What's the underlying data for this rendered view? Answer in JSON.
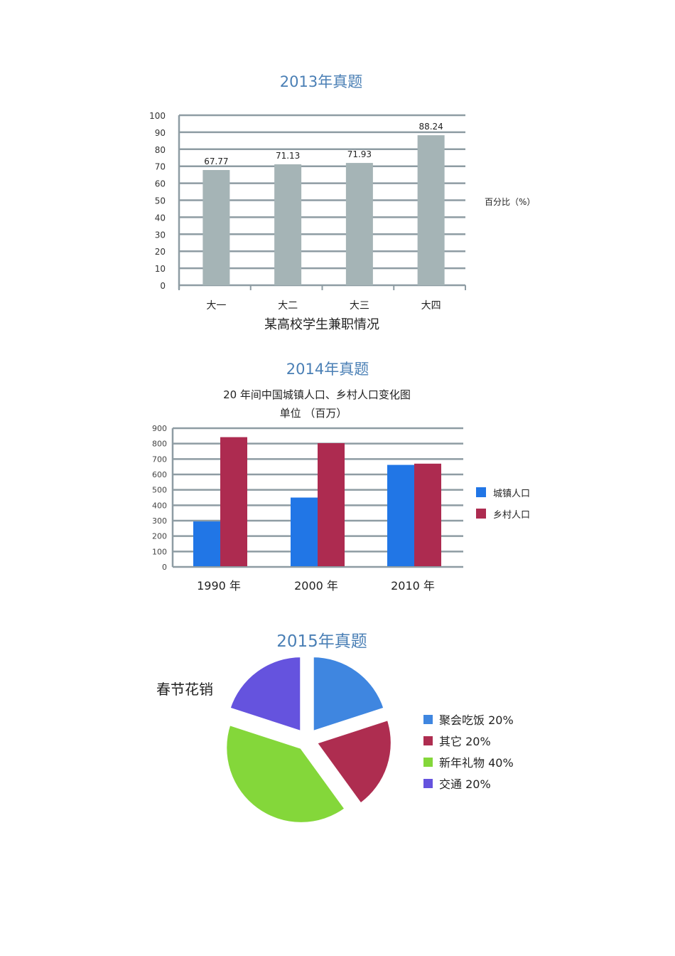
{
  "chart_data": [
    {
      "type": "bar",
      "title": "2013年真题",
      "xlabel": "某高校学生兼职情况",
      "legend": "百分比（%）",
      "categories": [
        "大一",
        "大二",
        "大三",
        "大四"
      ],
      "values": [
        67.77,
        71.13,
        71.93,
        88.24
      ],
      "data_labels": [
        "67.77",
        "71.13",
        "71.93",
        "88.24"
      ],
      "ylim": [
        0,
        100
      ],
      "yticks": [
        0,
        10,
        20,
        30,
        40,
        50,
        60,
        70,
        80,
        90,
        100
      ],
      "grid": true,
      "color": "#a5b4b6"
    },
    {
      "type": "bar",
      "title": "2014年真题",
      "subtitle": "20 年间中国城镇人口、乡村人口变化图",
      "unit": "单位 （百万）",
      "categories": [
        "1990 年",
        "2000 年",
        "2010 年"
      ],
      "series": [
        {
          "name": "城镇人口",
          "values": [
            295,
            450,
            662
          ],
          "color": "#2176e6"
        },
        {
          "name": "乡村人口",
          "values": [
            842,
            803,
            670
          ],
          "color": "#ad2b50"
        }
      ],
      "ylim": [
        0,
        900
      ],
      "yticks": [
        0,
        100,
        200,
        300,
        400,
        500,
        600,
        700,
        800,
        900
      ],
      "grid": true,
      "legend_position": "right"
    },
    {
      "type": "pie",
      "title": "2015年真题",
      "label": "春节花销",
      "slices": [
        {
          "name": "聚会吃饭 20%",
          "value": 20,
          "color": "#3f86e0"
        },
        {
          "name": "其它 20%",
          "value": 20,
          "color": "#ae2d50"
        },
        {
          "name": "新年礼物 40%",
          "value": 40,
          "color": "#84d73a"
        },
        {
          "name": "交通 20%",
          "value": 20,
          "color": "#6553de"
        }
      ],
      "exploded": true,
      "legend_position": "right"
    }
  ],
  "colors": {
    "title": "#4a7fb5",
    "grid": "#8e9ca3"
  }
}
